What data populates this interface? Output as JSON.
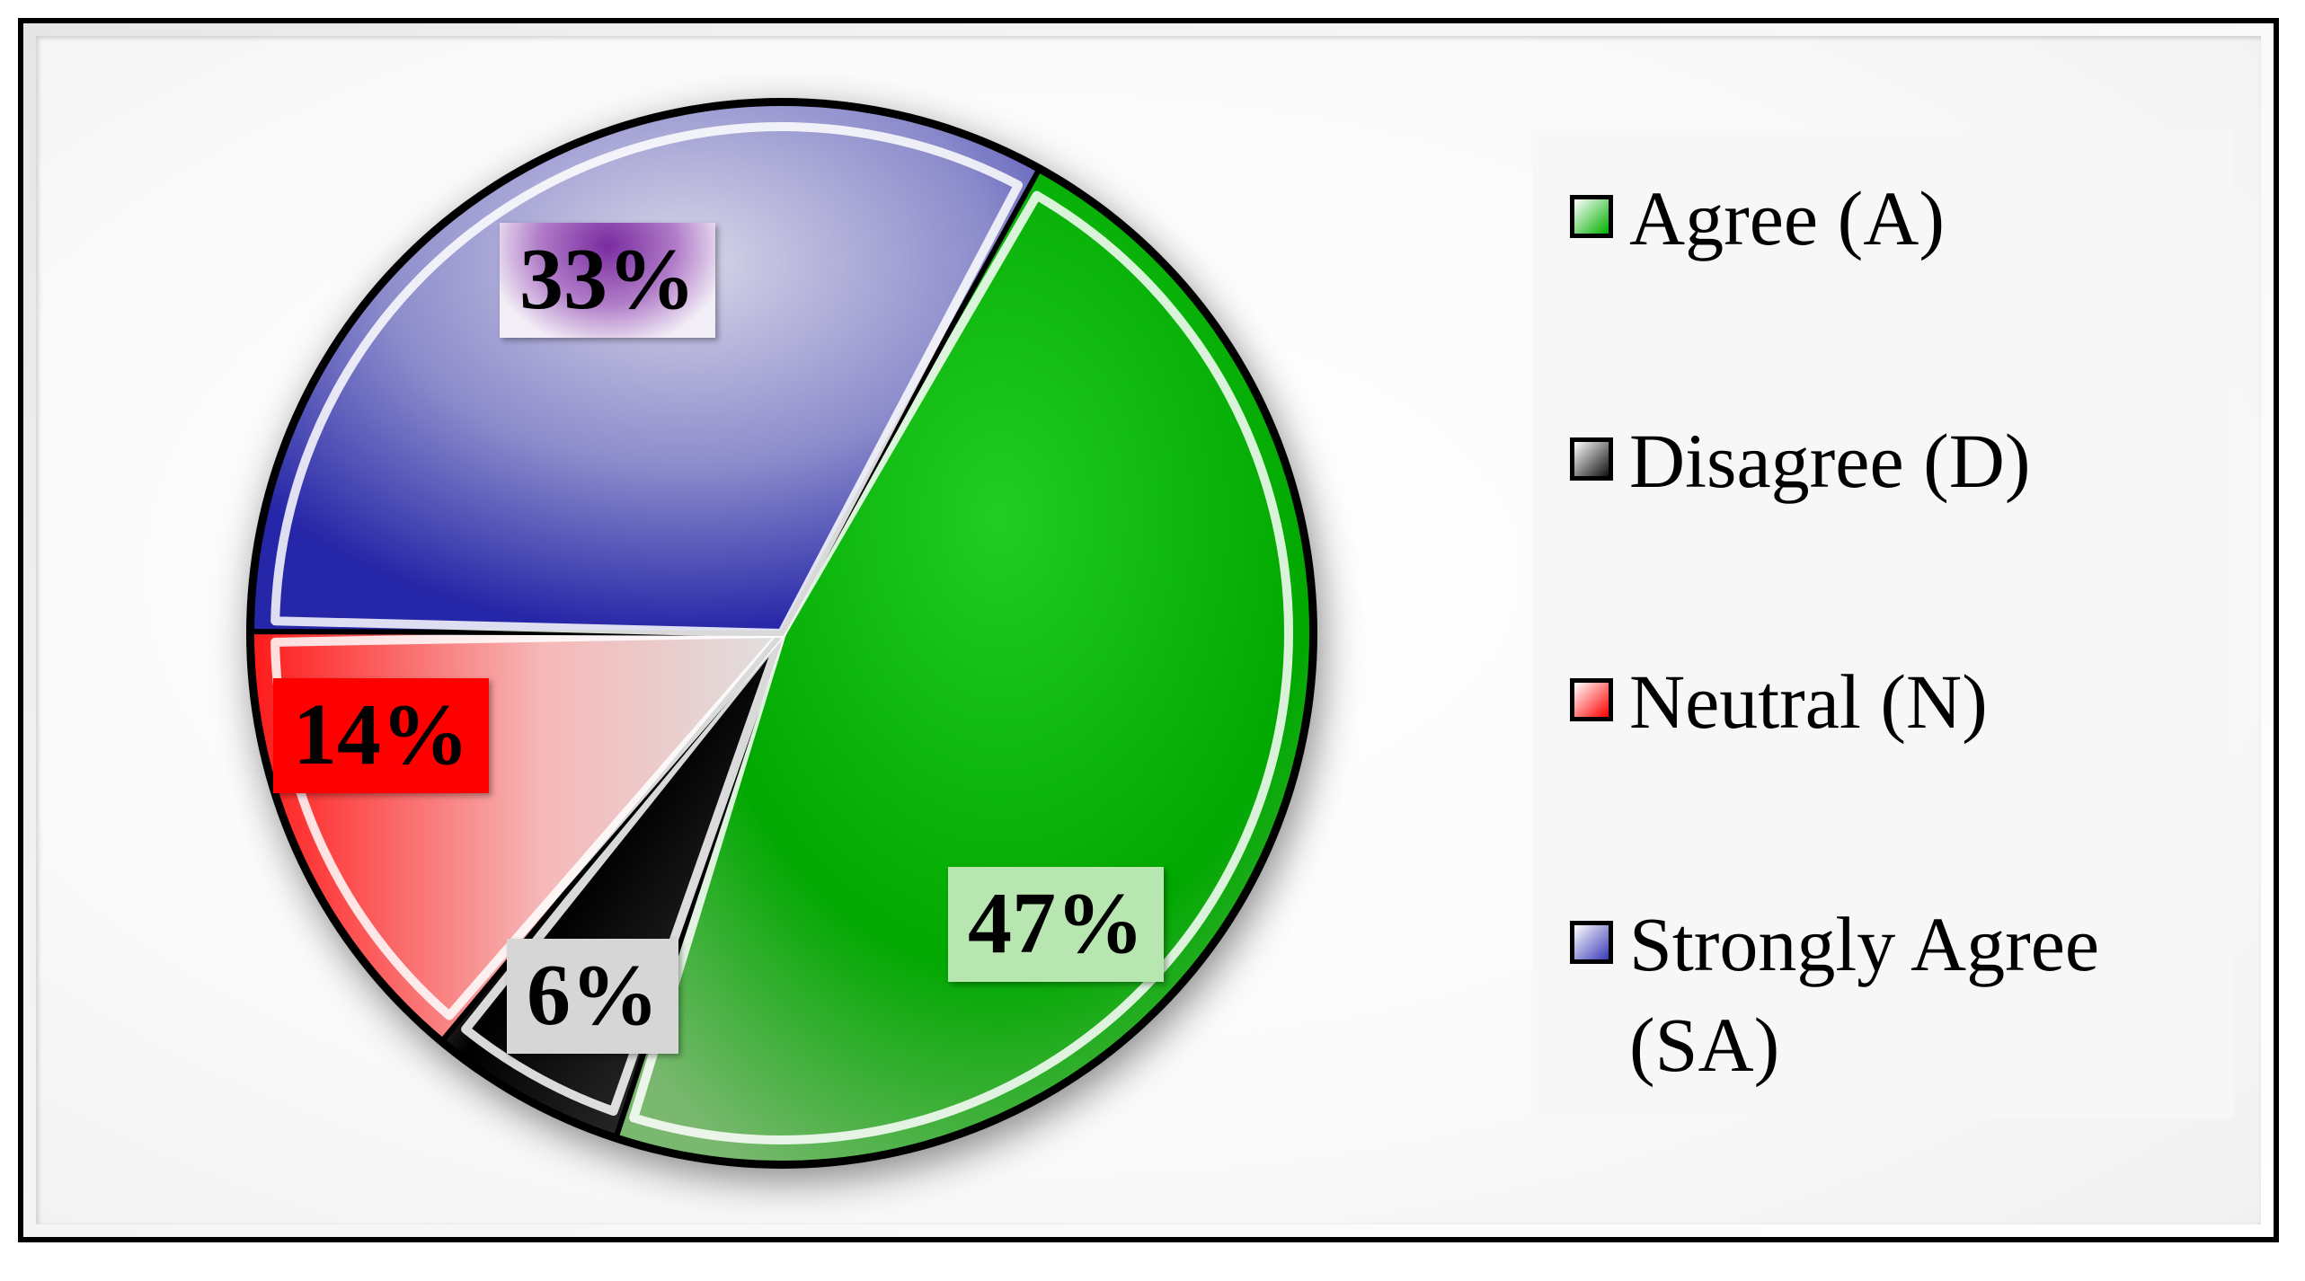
{
  "chart_data": {
    "type": "pie",
    "slices": [
      {
        "label": "Agree (A)",
        "value": 47,
        "data_label": "47%",
        "color": "#00b000"
      },
      {
        "label": "Disagree (D)",
        "value": 6,
        "data_label": "6%",
        "color": "#111111"
      },
      {
        "label": "Neutral (N)",
        "value": 14,
        "data_label": "14%",
        "color": "#ff0000"
      },
      {
        "label": "Strongly Agree (SA)",
        "value": 33,
        "data_label": "33%",
        "color": "#3a3ab8"
      }
    ],
    "legend_placement": "right",
    "style": "3d-beveled"
  },
  "data_label_backgrounds": [
    "#b8e6b0",
    "#d6d6d6",
    "#ff0000",
    "#e8e2f0"
  ]
}
